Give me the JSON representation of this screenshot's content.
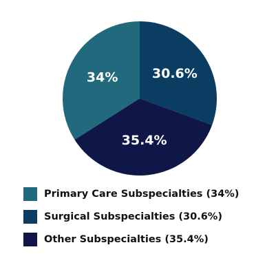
{
  "chart_data": {
    "type": "pie",
    "series": [
      {
        "name": "Primary Care Subspecialties (34%)",
        "color": "#216a7e",
        "values": [
          34
        ],
        "value_labels": [
          "34%"
        ]
      },
      {
        "name": "Surgical Subspecialties (30.6%)",
        "color": "#0b3d62",
        "values": [
          30.6
        ],
        "value_labels": [
          "30.6%"
        ]
      },
      {
        "name": "Other Subspecialties (35.4%)",
        "color": "#0e1747",
        "values": [
          35.4
        ],
        "value_labels": [
          "35.4%"
        ]
      }
    ]
  }
}
